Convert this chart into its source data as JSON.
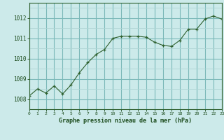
{
  "x": [
    0,
    1,
    2,
    3,
    4,
    5,
    6,
    7,
    8,
    9,
    10,
    11,
    12,
    13,
    14,
    15,
    16,
    17,
    18,
    19,
    20,
    21,
    22,
    23
  ],
  "y": [
    1008.15,
    1008.5,
    1008.3,
    1008.65,
    1008.25,
    1008.7,
    1009.3,
    1009.8,
    1010.2,
    1010.45,
    1011.0,
    1011.1,
    1011.1,
    1011.1,
    1011.05,
    1010.8,
    1010.65,
    1010.6,
    1010.9,
    1011.45,
    1011.45,
    1011.95,
    1012.1,
    1011.95
  ],
  "line_color": "#2d5f2d",
  "marker": "+",
  "bg_color": "#cceaea",
  "grid_minor_color": "#aed4d4",
  "grid_major_color": "#7ab8b8",
  "text_color": "#1a4a1a",
  "title": "Graphe pression niveau de la mer (hPa)",
  "ylim": [
    1007.5,
    1012.75
  ],
  "yticks": [
    1008,
    1009,
    1010,
    1011,
    1012
  ],
  "xlim": [
    0,
    23
  ],
  "xticks": [
    0,
    1,
    2,
    3,
    4,
    5,
    6,
    7,
    8,
    9,
    10,
    11,
    12,
    13,
    14,
    15,
    16,
    17,
    18,
    19,
    20,
    21,
    22,
    23
  ],
  "figsize": [
    3.2,
    2.0
  ],
  "dpi": 100
}
